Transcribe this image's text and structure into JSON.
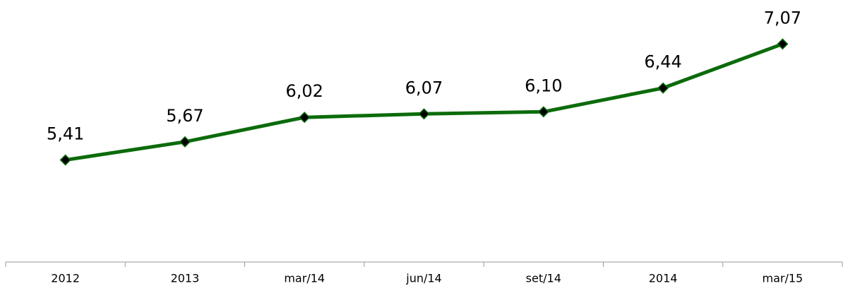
{
  "chart_data": {
    "type": "line",
    "categories": [
      "2012",
      "2013",
      "mar/14",
      "jun/14",
      "set/14",
      "2014",
      "mar/15"
    ],
    "values": [
      5.41,
      5.67,
      6.02,
      6.07,
      6.1,
      6.44,
      7.07
    ],
    "value_labels": [
      "5,41",
      "5,67",
      "6,02",
      "6,07",
      "6,10",
      "6,44",
      "7,07"
    ],
    "color": "#0b6b0b",
    "ylim": [
      3.95,
      7.7
    ]
  }
}
